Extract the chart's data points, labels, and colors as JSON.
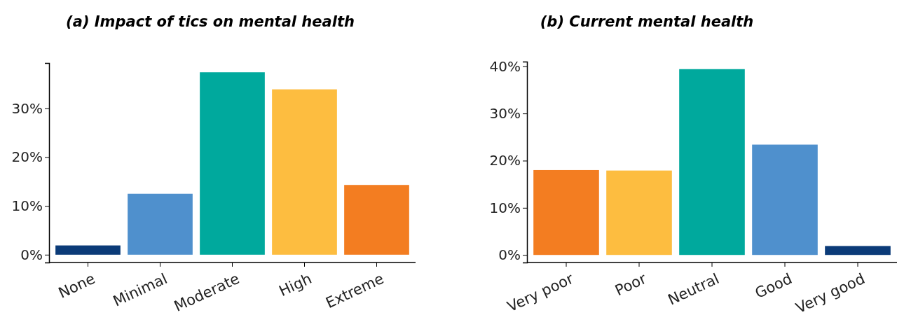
{
  "chart_data": [
    {
      "type": "bar",
      "title": "(a) Impact of tics on mental health",
      "categories": [
        "None",
        "Minimal",
        "Moderate",
        "High",
        "Extreme"
      ],
      "values": [
        1.9,
        12.5,
        37.4,
        33.9,
        14.3
      ],
      "colors": [
        "#0b3b78",
        "#4f90cd",
        "#00a99d",
        "#fdbd40",
        "#f37d21"
      ],
      "ylim": [
        -1.6,
        39.3
      ],
      "yticks": [
        {
          "value": 0,
          "label": "0%"
        },
        {
          "value": 10,
          "label": "10%"
        },
        {
          "value": 20,
          "label": "20%"
        },
        {
          "value": 30,
          "label": "30%"
        }
      ],
      "grid": false
    },
    {
      "type": "bar",
      "title": "(b) Current mental health",
      "categories": [
        "Very poor",
        "Poor",
        "Neutral",
        "Good",
        "Very good"
      ],
      "values": [
        18.0,
        17.9,
        39.4,
        23.4,
        1.9
      ],
      "colors": [
        "#f37d21",
        "#fdbd40",
        "#00a99d",
        "#4f90cd",
        "#0b3b78"
      ],
      "ylim": [
        -1.6,
        41
      ],
      "yticks": [
        {
          "value": 0,
          "label": "0%"
        },
        {
          "value": 10,
          "label": "10%"
        },
        {
          "value": 20,
          "label": "20%"
        },
        {
          "value": 30,
          "label": "30%"
        },
        {
          "value": 40,
          "label": "40%"
        }
      ],
      "grid": false
    }
  ]
}
